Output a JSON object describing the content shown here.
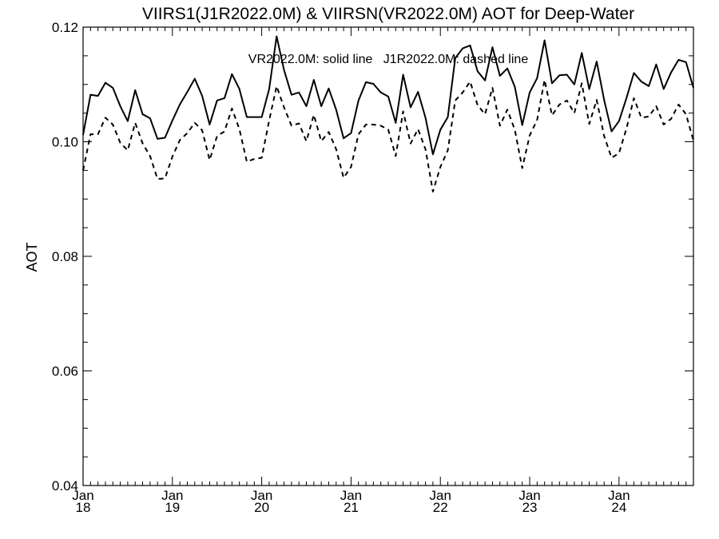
{
  "chart_data": {
    "type": "line",
    "title": "VIIRS1(J1R2022.0M) & VIIRSN(VR2022.0M)  AOT for Deep-Water",
    "ylabel": "AOT",
    "xlabel": "",
    "annotation": "VR2022.0M: solid line   J1R2022.0M: dashed line",
    "ylim": [
      0.04,
      0.12
    ],
    "y_ticks": [
      "0.04",
      "0.06",
      "0.08",
      "0.10",
      "0.12"
    ],
    "xlim": [
      "2018-01",
      "2024-11"
    ],
    "x_tick_labels": [
      {
        "month": "Jan",
        "year": "18"
      },
      {
        "month": "Jan",
        "year": "19"
      },
      {
        "month": "Jan",
        "year": "20"
      },
      {
        "month": "Jan",
        "year": "21"
      },
      {
        "month": "Jan",
        "year": "22"
      },
      {
        "month": "Jan",
        "year": "23"
      },
      {
        "month": "Jan",
        "year": "24"
      }
    ],
    "grid": false,
    "series": [
      {
        "name": "VR2022.0M",
        "style": "solid",
        "start": "2018-01",
        "values": [
          0.1012,
          0.1082,
          0.108,
          0.1103,
          0.1094,
          0.1062,
          0.1036,
          0.109,
          0.1048,
          0.1041,
          0.1005,
          0.1007,
          0.1037,
          0.1065,
          0.1087,
          0.111,
          0.108,
          0.103,
          0.1072,
          0.1076,
          0.1118,
          0.1092,
          0.1043,
          0.1043,
          0.1043,
          0.1092,
          0.1184,
          0.1125,
          0.1082,
          0.1086,
          0.1062,
          0.1108,
          0.1062,
          0.1093,
          0.1056,
          0.1006,
          0.1015,
          0.1072,
          0.1104,
          0.1101,
          0.1086,
          0.1079,
          0.1033,
          0.1117,
          0.106,
          0.1087,
          0.1042,
          0.0978,
          0.1021,
          0.1043,
          0.1146,
          0.1163,
          0.1168,
          0.1123,
          0.1107,
          0.1165,
          0.1115,
          0.1128,
          0.1096,
          0.1029,
          0.1086,
          0.1111,
          0.1177,
          0.1102,
          0.1116,
          0.1117,
          0.11,
          0.1155,
          0.1092,
          0.114,
          0.1073,
          0.1018,
          0.1036,
          0.1076,
          0.112,
          0.1105,
          0.1097,
          0.1135,
          0.1092,
          0.1121,
          0.1143,
          0.1139,
          0.1094
        ]
      },
      {
        "name": "J1R2022.0M",
        "style": "dashed",
        "start": "2018-01",
        "values": [
          0.095,
          0.1013,
          0.1013,
          0.1042,
          0.103,
          0.0998,
          0.0985,
          0.1033,
          0.0997,
          0.0975,
          0.0935,
          0.0936,
          0.0974,
          0.1003,
          0.1015,
          0.1033,
          0.102,
          0.0968,
          0.101,
          0.1018,
          0.1058,
          0.1022,
          0.0965,
          0.097,
          0.0972,
          0.1037,
          0.1097,
          0.106,
          0.1028,
          0.1032,
          0.1001,
          0.1047,
          0.1001,
          0.1017,
          0.0987,
          0.0937,
          0.0956,
          0.1013,
          0.103,
          0.103,
          0.1028,
          0.1021,
          0.0975,
          0.1053,
          0.0997,
          0.1022,
          0.0987,
          0.0913,
          0.0956,
          0.0985,
          0.1072,
          0.1086,
          0.1105,
          0.1064,
          0.1048,
          0.1094,
          0.1028,
          0.1056,
          0.1021,
          0.0954,
          0.1011,
          0.1038,
          0.1108,
          0.1046,
          0.1065,
          0.1072,
          0.105,
          0.1102,
          0.1031,
          0.1073,
          0.101,
          0.0972,
          0.098,
          0.1023,
          0.1076,
          0.1042,
          0.1044,
          0.1062,
          0.103,
          0.104,
          0.1065,
          0.1048,
          0.1002
        ]
      }
    ]
  }
}
